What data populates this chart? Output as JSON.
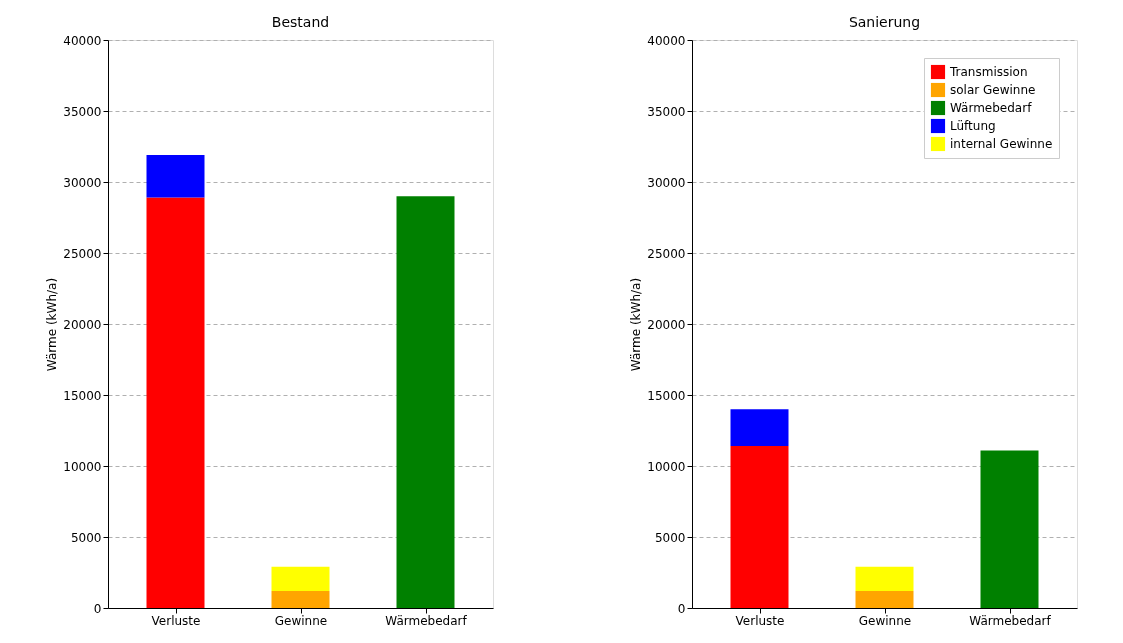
{
  "chart_data": [
    {
      "type": "bar",
      "title": "Bestand",
      "ylabel": "Wärme (kWh/a)",
      "categories": [
        "Verluste",
        "Gewinne",
        "Wärmebedarf"
      ],
      "stacked": true,
      "ylim": [
        0,
        40000
      ],
      "yticks": [
        0,
        5000,
        10000,
        15000,
        20000,
        25000,
        30000,
        35000,
        40000
      ],
      "grid": "y",
      "legend": false,
      "series": [
        {
          "color": "#ff0000",
          "values": [
            28900,
            null,
            null
          ]
        },
        {
          "color": "#ffa500",
          "values": [
            null,
            1200,
            null
          ]
        },
        {
          "color": "#008000",
          "values": [
            null,
            null,
            29000
          ]
        },
        {
          "color": "#0000ff",
          "values": [
            3000,
            null,
            null
          ]
        },
        {
          "color": "#ffff00",
          "values": [
            null,
            1700,
            null
          ]
        }
      ]
    },
    {
      "type": "bar",
      "title": "Sanierung",
      "ylabel": "Wärme (kWh/a)",
      "categories": [
        "Verluste",
        "Gewinne",
        "Wärmebedarf"
      ],
      "stacked": true,
      "ylim": [
        0,
        40000
      ],
      "yticks": [
        0,
        5000,
        10000,
        15000,
        20000,
        25000,
        30000,
        35000,
        40000
      ],
      "grid": "y",
      "legend": "top right",
      "series": [
        {
          "name": "Transmission",
          "color": "#ff0000",
          "values": [
            11400,
            null,
            null
          ]
        },
        {
          "name": "solar Gewinne",
          "color": "#ffa500",
          "values": [
            null,
            1200,
            null
          ]
        },
        {
          "name": "Wärmebedarf",
          "color": "#008000",
          "values": [
            null,
            null,
            11100
          ]
        },
        {
          "name": "Lüftung",
          "color": "#0000ff",
          "values": [
            2600,
            null,
            null
          ]
        },
        {
          "name": "internal Gewinne",
          "color": "#ffff00",
          "values": [
            null,
            1700,
            null
          ]
        }
      ]
    }
  ]
}
